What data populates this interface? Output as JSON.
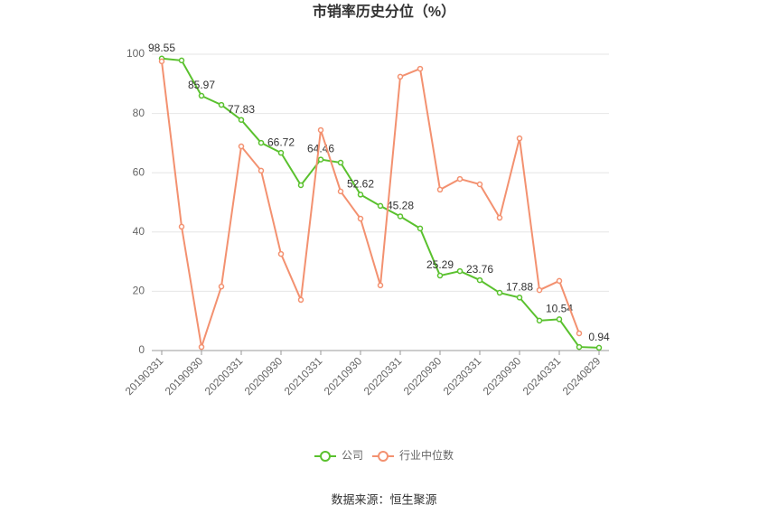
{
  "chart_data": {
    "type": "line",
    "title": "市销率历史分位（%）",
    "categories": [
      "20190331",
      null,
      "20190930",
      null,
      "20200331",
      null,
      "20200930",
      null,
      "20210331",
      null,
      "20210930",
      null,
      "20220331",
      null,
      "20220930",
      null,
      "20230331",
      null,
      "20230930",
      null,
      "20240331",
      null,
      "20240829"
    ],
    "series": [
      {
        "name": "公司",
        "color": "#5ac12e",
        "values": [
          98.55,
          97.9,
          85.97,
          82.9,
          77.83,
          70.1,
          66.72,
          55.8,
          64.46,
          63.4,
          52.62,
          48.8,
          45.28,
          41.2,
          25.29,
          26.8,
          23.76,
          19.5,
          17.88,
          10.1,
          10.54,
          1.2,
          0.94
        ],
        "value_labels": [
          "98.55",
          null,
          "85.97",
          null,
          "77.83",
          null,
          "66.72",
          null,
          "64.46",
          null,
          "52.62",
          null,
          "45.28",
          null,
          "25.29",
          null,
          "23.76",
          null,
          "17.88",
          null,
          "10.54",
          null,
          "0.94"
        ]
      },
      {
        "name": "行业中位数",
        "color": "#f39170",
        "values": [
          97.6,
          41.8,
          1.2,
          21.6,
          68.9,
          60.7,
          32.6,
          17.1,
          74.4,
          53.7,
          44.5,
          22.0,
          92.4,
          95.1,
          54.3,
          57.9,
          56.1,
          44.8,
          71.6,
          20.4,
          23.5,
          5.8,
          null
        ]
      }
    ],
    "ylim": [
      0,
      100
    ],
    "yticks": [
      0,
      20,
      40,
      60,
      80,
      100
    ],
    "grid": true,
    "legend": "bottom",
    "source": "数据来源：恒生聚源"
  }
}
